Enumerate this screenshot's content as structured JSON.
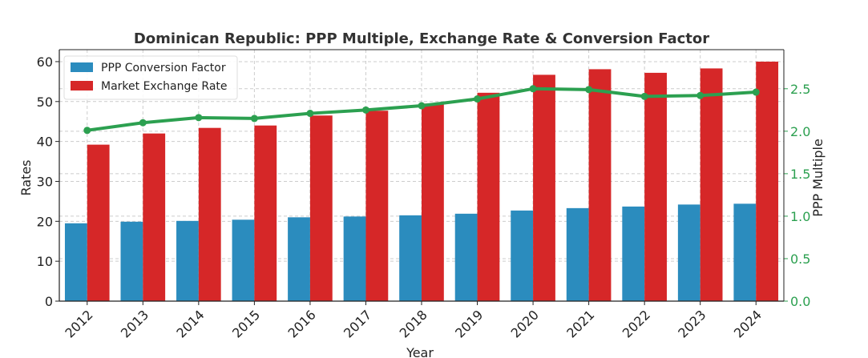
{
  "chart_data": {
    "type": "bar",
    "title": "Dominican Republic: PPP Multiple, Exchange Rate & Conversion Factor",
    "xlabel": "Year",
    "ylabel": "Rates",
    "y2label": "PPP Multiple",
    "categories": [
      "2012",
      "2013",
      "2014",
      "2015",
      "2016",
      "2017",
      "2018",
      "2019",
      "2020",
      "2021",
      "2022",
      "2023",
      "2024"
    ],
    "ylim": [
      0,
      63
    ],
    "y2lim": [
      0,
      2.96
    ],
    "yticks": [
      "0",
      "10",
      "20",
      "30",
      "40",
      "50",
      "60"
    ],
    "y2ticks": [
      "0.0",
      "0.5",
      "1.0",
      "1.5",
      "2.0",
      "2.5"
    ],
    "grid": true,
    "legend_position": "top-left",
    "series": [
      {
        "name": "PPP Conversion Factor",
        "type": "bar",
        "axis": "left",
        "color": "#2b8cbe",
        "values": [
          19.5,
          19.9,
          20.1,
          20.4,
          21.0,
          21.2,
          21.5,
          21.9,
          22.7,
          23.3,
          23.7,
          24.2,
          24.4
        ]
      },
      {
        "name": "Market Exchange Rate",
        "type": "bar",
        "axis": "left",
        "color": "#d62728",
        "values": [
          39.2,
          42.0,
          43.4,
          44.0,
          46.5,
          47.7,
          49.5,
          52.2,
          56.7,
          58.1,
          57.2,
          58.3,
          60.0
        ]
      },
      {
        "name": "PPP Multiple",
        "type": "line",
        "axis": "right",
        "color": "#2ca050",
        "values": [
          2.01,
          2.1,
          2.16,
          2.15,
          2.21,
          2.25,
          2.3,
          2.38,
          2.5,
          2.49,
          2.41,
          2.42,
          2.46
        ]
      }
    ],
    "colors": {
      "y2_axis": "#2ca050",
      "axis": "#222222",
      "grid": "#cccccc"
    }
  }
}
